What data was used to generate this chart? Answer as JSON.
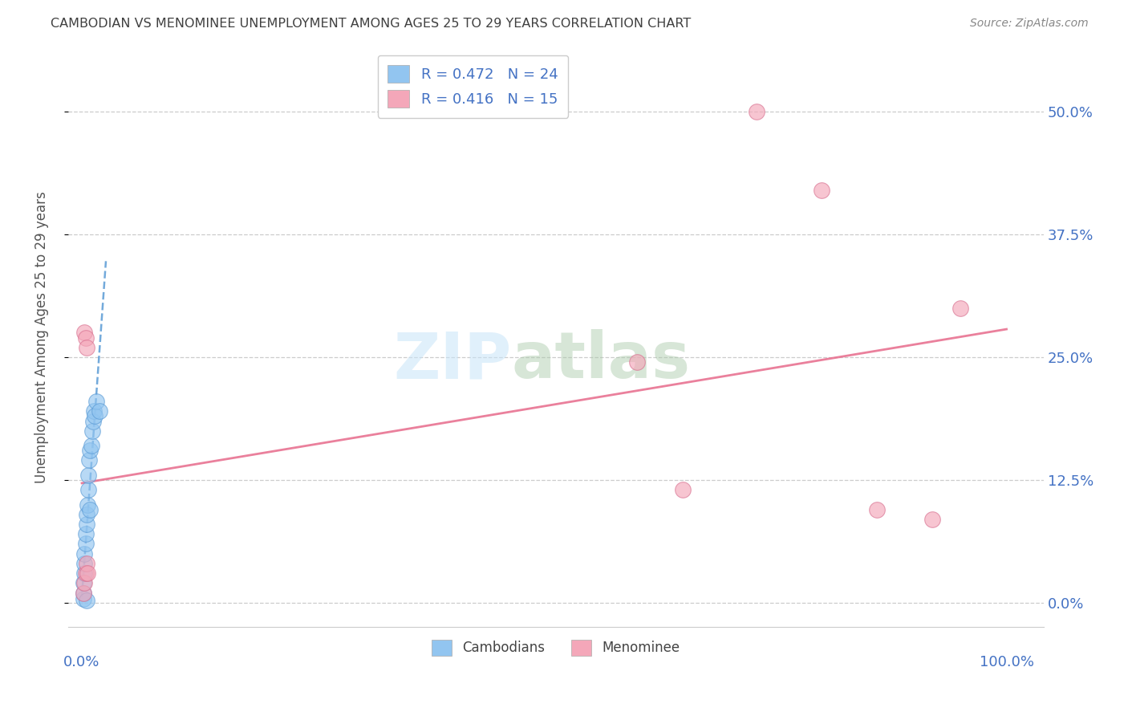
{
  "title": "CAMBODIAN VS MENOMINEE UNEMPLOYMENT AMONG AGES 25 TO 29 YEARS CORRELATION CHART",
  "source": "Source: ZipAtlas.com",
  "ylabel": "Unemployment Among Ages 25 to 29 years",
  "ytick_labels": [
    "0.0%",
    "12.5%",
    "25.0%",
    "37.5%",
    "50.0%"
  ],
  "ytick_values": [
    0.0,
    0.125,
    0.25,
    0.375,
    0.5
  ],
  "xlim": [
    0.0,
    1.0
  ],
  "ylim": [
    0.0,
    0.55
  ],
  "cambodian_R": 0.472,
  "cambodian_N": 24,
  "menominee_R": 0.416,
  "menominee_N": 15,
  "cambodian_color": "#92C5F0",
  "menominee_color": "#F4A7B9",
  "cambodian_line_color": "#5B9BD5",
  "menominee_line_color": "#E87291",
  "title_color": "#404040",
  "source_color": "#888888",
  "axis_color": "#4472C4",
  "cambodian_x": [
    0.002,
    0.002,
    0.002,
    0.003,
    0.003,
    0.003,
    0.004,
    0.004,
    0.005,
    0.005,
    0.005,
    0.006,
    0.007,
    0.007,
    0.008,
    0.009,
    0.009,
    0.01,
    0.011,
    0.012,
    0.013,
    0.014,
    0.016,
    0.019
  ],
  "cambodian_y": [
    0.004,
    0.01,
    0.02,
    0.03,
    0.04,
    0.05,
    0.06,
    0.07,
    0.002,
    0.08,
    0.09,
    0.1,
    0.115,
    0.13,
    0.145,
    0.155,
    0.095,
    0.16,
    0.175,
    0.185,
    0.195,
    0.19,
    0.205,
    0.195
  ],
  "menominee_x": [
    0.002,
    0.003,
    0.003,
    0.004,
    0.004,
    0.005,
    0.005,
    0.006,
    0.6,
    0.65,
    0.73,
    0.8,
    0.86,
    0.92,
    0.95
  ],
  "menominee_y": [
    0.01,
    0.02,
    0.275,
    0.27,
    0.03,
    0.26,
    0.04,
    0.03,
    0.245,
    0.115,
    0.5,
    0.42,
    0.095,
    0.085,
    0.3
  ],
  "cambodian_trend_x": [
    0.0,
    0.025
  ],
  "cambodian_trend_y_intercept": 0.125,
  "cambodian_trend_slope": 8.5,
  "menominee_trend_x": [
    0.0,
    1.0
  ],
  "menominee_trend_y": [
    0.135,
    0.315
  ]
}
